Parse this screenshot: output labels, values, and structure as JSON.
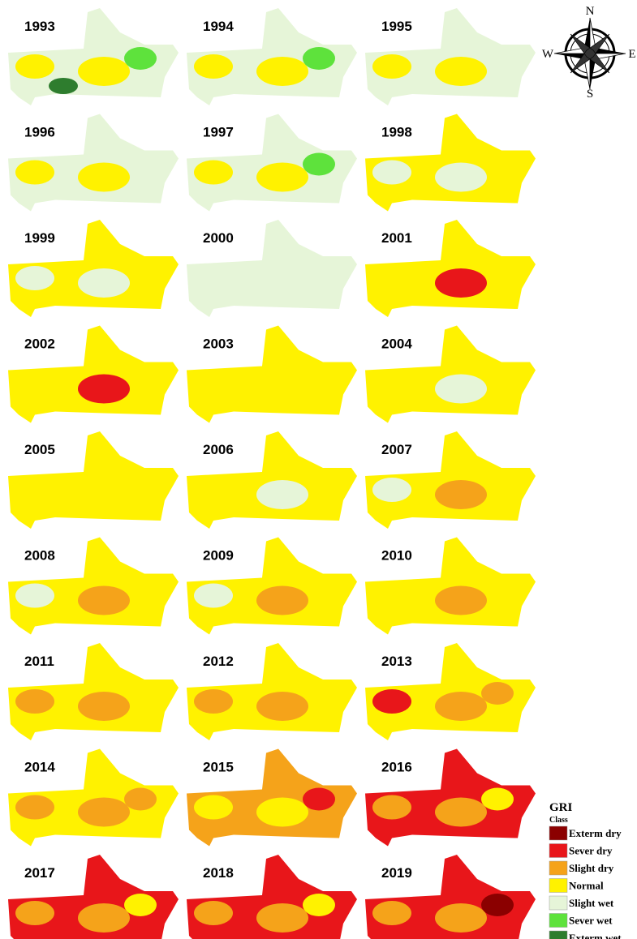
{
  "maps": [
    {
      "year": "1993",
      "fill": "#e6f5d8",
      "patches": [
        "#fff200",
        "#fff200",
        "#5ee23c",
        "#2e7d2e"
      ]
    },
    {
      "year": "1994",
      "fill": "#e6f5d8",
      "patches": [
        "#fff200",
        "#fff200",
        "#5ee23c"
      ]
    },
    {
      "year": "1995",
      "fill": "#e6f5d8",
      "patches": [
        "#fff200",
        "#fff200"
      ]
    },
    {
      "year": "1996",
      "fill": "#e6f5d8",
      "patches": [
        "#fff200",
        "#fff200"
      ]
    },
    {
      "year": "1997",
      "fill": "#e6f5d8",
      "patches": [
        "#fff200",
        "#fff200",
        "#5ee23c"
      ]
    },
    {
      "year": "1998",
      "fill": "#fff200",
      "patches": [
        "#e6f5d8",
        "#e6f5d8"
      ]
    },
    {
      "year": "1999",
      "fill": "#fff200",
      "patches": [
        "#e6f5d8",
        "#e6f5d8"
      ]
    },
    {
      "year": "2000",
      "fill": "#e6f5d8",
      "patches": []
    },
    {
      "year": "2001",
      "fill": "#fff200",
      "patches": [
        "#e8161a"
      ]
    },
    {
      "year": "2002",
      "fill": "#fff200",
      "patches": [
        "#e8161a"
      ]
    },
    {
      "year": "2003",
      "fill": "#fff200",
      "patches": []
    },
    {
      "year": "2004",
      "fill": "#fff200",
      "patches": [
        "#e6f5d8"
      ]
    },
    {
      "year": "2005",
      "fill": "#fff200",
      "patches": []
    },
    {
      "year": "2006",
      "fill": "#fff200",
      "patches": [
        "#e6f5d8"
      ]
    },
    {
      "year": "2007",
      "fill": "#fff200",
      "patches": [
        "#f5a31a",
        "#e6f5d8"
      ]
    },
    {
      "year": "2008",
      "fill": "#fff200",
      "patches": [
        "#f5a31a",
        "#e6f5d8"
      ]
    },
    {
      "year": "2009",
      "fill": "#fff200",
      "patches": [
        "#f5a31a",
        "#e6f5d8"
      ]
    },
    {
      "year": "2010",
      "fill": "#fff200",
      "patches": [
        "#f5a31a"
      ]
    },
    {
      "year": "2011",
      "fill": "#fff200",
      "patches": [
        "#f5a31a",
        "#f5a31a"
      ]
    },
    {
      "year": "2012",
      "fill": "#fff200",
      "patches": [
        "#f5a31a",
        "#f5a31a"
      ]
    },
    {
      "year": "2013",
      "fill": "#fff200",
      "patches": [
        "#f5a31a",
        "#e8161a",
        "#f5a31a"
      ]
    },
    {
      "year": "2014",
      "fill": "#fff200",
      "patches": [
        "#f5a31a",
        "#f5a31a",
        "#f5a31a"
      ]
    },
    {
      "year": "2015",
      "fill": "#f5a31a",
      "patches": [
        "#fff200",
        "#fff200",
        "#e8161a"
      ]
    },
    {
      "year": "2016",
      "fill": "#e8161a",
      "patches": [
        "#f5a31a",
        "#f5a31a",
        "#fff200"
      ]
    },
    {
      "year": "2017",
      "fill": "#e8161a",
      "patches": [
        "#f5a31a",
        "#f5a31a",
        "#fff200"
      ]
    },
    {
      "year": "2018",
      "fill": "#e8161a",
      "patches": [
        "#f5a31a",
        "#f5a31a",
        "#fff200"
      ]
    },
    {
      "year": "2019",
      "fill": "#e8161a",
      "patches": [
        "#f5a31a",
        "#f5a31a",
        "#8b0000"
      ]
    }
  ],
  "legend": {
    "title": "GRI",
    "subtitle": "Class",
    "items": [
      {
        "label": "Exterm dry",
        "color": "#8b0000"
      },
      {
        "label": "Sever dry",
        "color": "#e8161a"
      },
      {
        "label": "Slight dry",
        "color": "#f5a31a"
      },
      {
        "label": "Normal",
        "color": "#fff200"
      },
      {
        "label": "Slight wet",
        "color": "#e6f5d8"
      },
      {
        "label": "Sever wet",
        "color": "#5ee23c"
      },
      {
        "label": "Exterm wet",
        "color": "#2e7d2e"
      }
    ]
  },
  "compass": {
    "n": "N",
    "s": "S",
    "e": "E",
    "w": "W"
  }
}
